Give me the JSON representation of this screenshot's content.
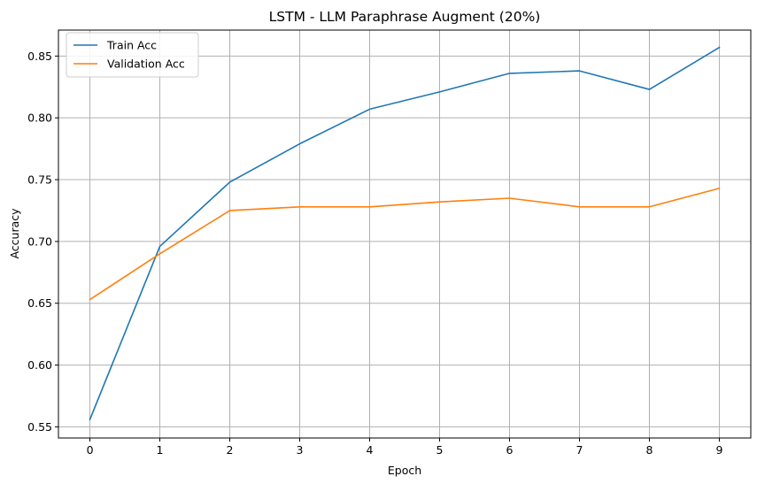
{
  "chart_data": {
    "type": "line",
    "title": "LSTM - LLM Paraphrase Augment (20%)",
    "xlabel": "Epoch",
    "ylabel": "Accuracy",
    "x": [
      0,
      1,
      2,
      3,
      4,
      5,
      6,
      7,
      8,
      9
    ],
    "xlim": [
      -0.45,
      9.45
    ],
    "ylim": [
      0.541,
      0.871
    ],
    "xticks": [
      0,
      1,
      2,
      3,
      4,
      5,
      6,
      7,
      8,
      9
    ],
    "yticks": [
      0.55,
      0.6,
      0.65,
      0.7,
      0.75,
      0.8,
      0.85
    ],
    "ytick_labels": [
      "0.55",
      "0.60",
      "0.65",
      "0.70",
      "0.75",
      "0.80",
      "0.85"
    ],
    "grid": true,
    "legend_position": "top-left",
    "series": [
      {
        "name": "Train Acc",
        "color": "#1f77b4",
        "values": [
          0.556,
          0.696,
          0.748,
          0.779,
          0.807,
          0.821,
          0.836,
          0.838,
          0.823,
          0.857
        ]
      },
      {
        "name": "Validation Acc",
        "color": "#ff7f0e",
        "values": [
          0.653,
          0.69,
          0.725,
          0.728,
          0.728,
          0.732,
          0.735,
          0.728,
          0.728,
          0.743
        ]
      }
    ]
  }
}
